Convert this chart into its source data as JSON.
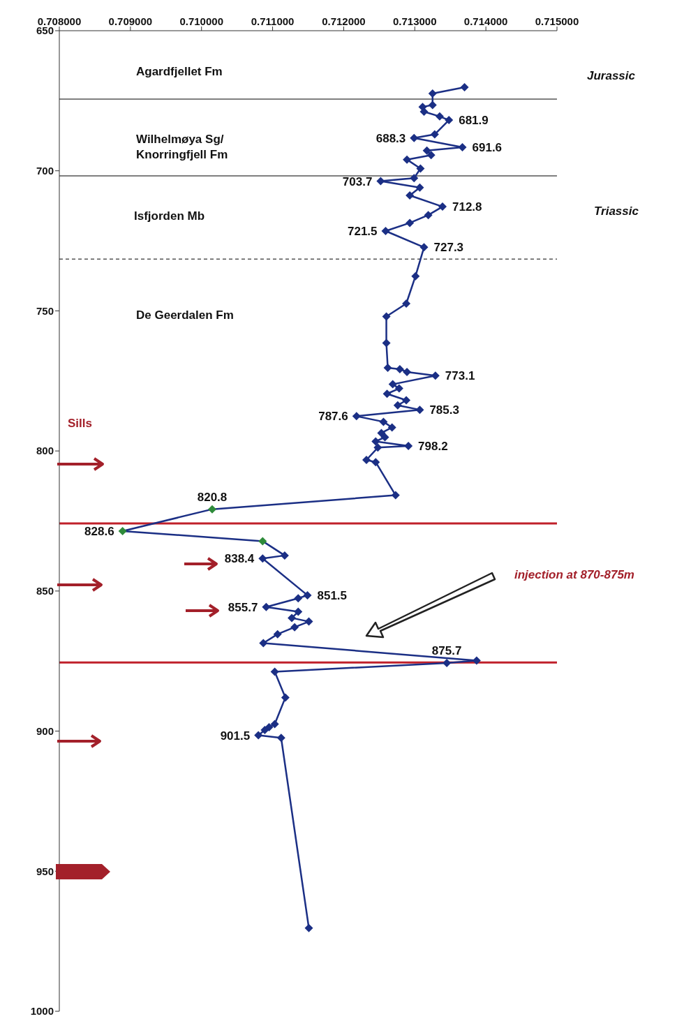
{
  "chart_data": {
    "type": "line",
    "xlim": [
      0.708,
      0.715
    ],
    "xticks": [
      {
        "value": 0.708,
        "label": "0.708000"
      },
      {
        "value": 0.709,
        "label": "0.709000"
      },
      {
        "value": 0.71,
        "label": "0.710000"
      },
      {
        "value": 0.711,
        "label": "0.711000"
      },
      {
        "value": 0.712,
        "label": "0.712000"
      },
      {
        "value": 0.713,
        "label": "0.713000"
      },
      {
        "value": 0.714,
        "label": "0.714000"
      },
      {
        "value": 0.715,
        "label": "0.715000"
      }
    ],
    "ylim": [
      1000,
      650
    ],
    "yticks": [
      650,
      700,
      750,
      800,
      850,
      900,
      950,
      1000
    ],
    "marker": "diamond",
    "line_style": "solid",
    "series": [
      {
        "color": "#1b2f85",
        "x": [
          0.7137,
          0.71325,
          0.71325,
          0.71311,
          0.71313,
          0.71335,
          0.71348,
          0.71328,
          0.71299,
          0.71367,
          0.71317,
          0.71323,
          0.71289,
          0.71308,
          0.71299,
          0.71252,
          0.71307,
          0.71293,
          0.71339,
          0.71319,
          0.71293,
          0.71259,
          0.71313,
          0.71301,
          0.71288,
          0.7126,
          0.7126,
          0.71262,
          0.71279,
          0.71289,
          0.71329,
          0.71269,
          0.71278,
          0.71261,
          0.71288,
          0.71276,
          0.71307,
          0.71218,
          0.71256,
          0.71268,
          0.71253,
          0.71258,
          0.71245,
          0.71291,
          0.71248,
          0.71232,
          0.71245,
          0.71273,
          0.71015,
          0.70889,
          0.71086,
          0.71117,
          0.71086,
          0.71149,
          0.71136,
          0.71091,
          0.71136,
          0.71127,
          0.71151,
          0.71131,
          0.71107,
          0.71087,
          0.71387,
          0.71345,
          0.71103,
          0.71118,
          0.71103,
          0.71095,
          0.71089,
          0.7108,
          0.71112,
          0.71151
        ],
        "values": [
          670.2,
          672.4,
          676.5,
          677.2,
          678.9,
          680.6,
          681.9,
          687.0,
          688.3,
          691.6,
          692.8,
          694.4,
          696.0,
          699.2,
          702.6,
          703.7,
          706.0,
          708.8,
          712.8,
          715.8,
          718.6,
          721.5,
          727.3,
          737.6,
          747.4,
          752.0,
          761.5,
          770.3,
          770.8,
          771.8,
          773.1,
          776.2,
          777.7,
          779.6,
          781.9,
          783.7,
          785.3,
          787.6,
          789.6,
          791.6,
          793.6,
          795.1,
          796.6,
          798.2,
          798.8,
          803.2,
          804.0,
          815.8,
          820.8,
          828.6,
          832.2,
          837.3,
          838.4,
          851.5,
          852.6,
          855.7,
          857.4,
          859.6,
          860.9,
          862.9,
          865.4,
          868.6,
          874.8,
          875.7,
          878.8,
          888.0,
          897.5,
          898.6,
          899.6,
          901.5,
          902.4,
          970.3
        ],
        "colors": [
          "#1b2f85",
          "#1b2f85",
          "#1b2f85",
          "#1b2f85",
          "#1b2f85",
          "#1b2f85",
          "#1b2f85",
          "#1b2f85",
          "#1b2f85",
          "#1b2f85",
          "#1b2f85",
          "#1b2f85",
          "#1b2f85",
          "#1b2f85",
          "#1b2f85",
          "#1b2f85",
          "#1b2f85",
          "#1b2f85",
          "#1b2f85",
          "#1b2f85",
          "#1b2f85",
          "#1b2f85",
          "#1b2f85",
          "#1b2f85",
          "#1b2f85",
          "#1b2f85",
          "#1b2f85",
          "#1b2f85",
          "#1b2f85",
          "#1b2f85",
          "#1b2f85",
          "#1b2f85",
          "#1b2f85",
          "#1b2f85",
          "#1b2f85",
          "#1b2f85",
          "#1b2f85",
          "#1b2f85",
          "#1b2f85",
          "#1b2f85",
          "#1b2f85",
          "#1b2f85",
          "#1b2f85",
          "#1b2f85",
          "#1b2f85",
          "#1b2f85",
          "#1b2f85",
          "#1b2f85",
          "#2e8b3a",
          "#2e8b3a",
          "#2e8b3a",
          "#1b2f85",
          "#1b2f85",
          "#1b2f85",
          "#1b2f85",
          "#1b2f85",
          "#1b2f85",
          "#1b2f85",
          "#1b2f85",
          "#1b2f85",
          "#1b2f85",
          "#1b2f85",
          "#1b2f85",
          "#1b2f85",
          "#1b2f85",
          "#1b2f85",
          "#1b2f85",
          "#1b2f85",
          "#1b2f85",
          "#1b2f85",
          "#1b2f85",
          "#1b2f85"
        ],
        "value_labels": [
          null,
          null,
          null,
          null,
          null,
          null,
          "681.9",
          null,
          "688.3",
          "691.6",
          null,
          null,
          null,
          null,
          null,
          "703.7",
          null,
          null,
          "712.8",
          null,
          null,
          "721.5",
          "727.3",
          null,
          null,
          null,
          null,
          null,
          null,
          null,
          "773.1",
          null,
          null,
          null,
          null,
          null,
          "785.3",
          "787.6",
          null,
          null,
          null,
          null,
          null,
          "798.2",
          null,
          null,
          null,
          null,
          "820.8",
          "828.6",
          null,
          null,
          "838.4",
          "851.5",
          null,
          "855.7",
          null,
          null,
          null,
          null,
          null,
          null,
          null,
          "875.7",
          null,
          null,
          null,
          null,
          null,
          "901.5",
          null,
          null
        ]
      }
    ],
    "ref_lines": [
      {
        "axis": "y",
        "value": 674.4,
        "color": "#555555",
        "line_style": "solid"
      },
      {
        "axis": "y",
        "value": 701.8,
        "color": "#555555",
        "line_style": "solid"
      },
      {
        "axis": "y",
        "value": 731.5,
        "color": "#555555",
        "line_style": "dashed"
      },
      {
        "axis": "y",
        "value": 825.9,
        "color": "#c0202a",
        "line_style": "solid"
      },
      {
        "axis": "y",
        "value": 875.5,
        "color": "#c0202a",
        "line_style": "solid"
      }
    ],
    "annotations": [
      "Agardfjellet Fm",
      "Wilhelmøya Sg/\nKnorringfjell Fm",
      "Isfjorden Mb",
      "De Geerdalen Fm",
      "Jurassic",
      "Triassic",
      "Sills",
      "injection at 870-875m"
    ]
  }
}
